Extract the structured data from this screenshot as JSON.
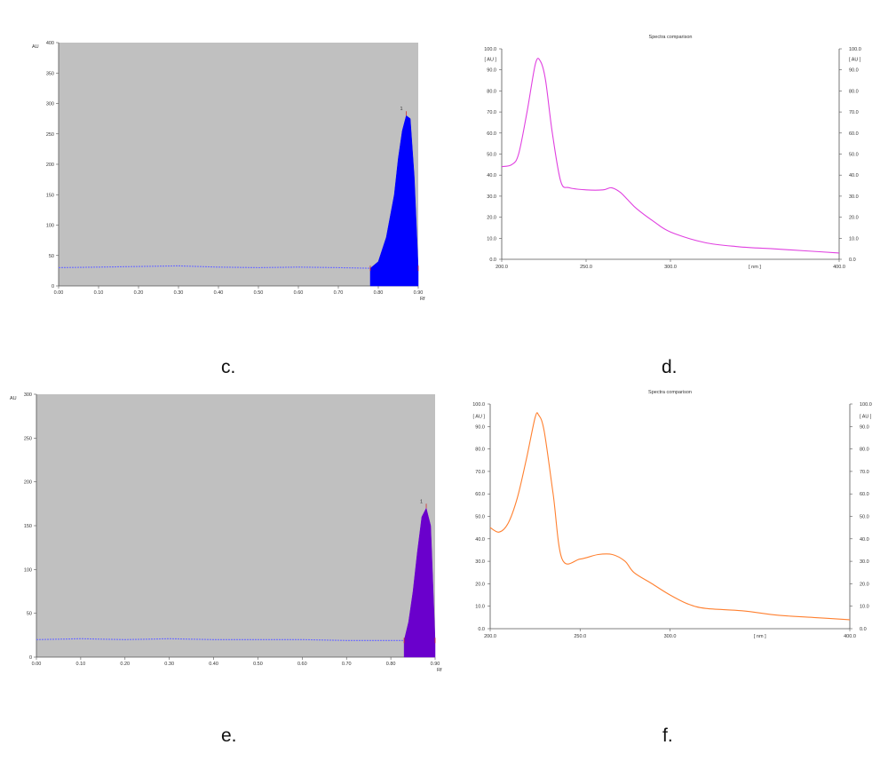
{
  "labels": {
    "c": "c.",
    "d": "d.",
    "e": "e.",
    "f": "f."
  },
  "chart_data": [
    {
      "id": "c",
      "type": "area",
      "ylabel": "AU",
      "xlabel": "Rf",
      "ylim": [
        0,
        400
      ],
      "xlim": [
        0.0,
        0.9
      ],
      "y_ticks": [
        "0",
        "50",
        "100",
        "150",
        "200",
        "250",
        "300",
        "350",
        "400"
      ],
      "x_ticks": [
        "0.00",
        "0.10",
        "0.20",
        "0.30",
        "0.40",
        "0.50",
        "0.60",
        "0.70",
        "0.80",
        "0.90"
      ],
      "grid": false,
      "background": "#c0c0c0",
      "baseline_color": "#6a6aff",
      "peak_color": "#0000ff",
      "peak_label": "1",
      "baseline": {
        "x": [
          0.0,
          0.1,
          0.2,
          0.3,
          0.4,
          0.5,
          0.6,
          0.7,
          0.78
        ],
        "y": [
          30,
          31,
          32,
          33,
          31,
          30,
          31,
          30,
          29
        ]
      },
      "peak": {
        "x": [
          0.78,
          0.8,
          0.82,
          0.84,
          0.85,
          0.86,
          0.87,
          0.88,
          0.89,
          0.9
        ],
        "y": [
          29,
          40,
          80,
          150,
          210,
          255,
          280,
          275,
          180,
          29
        ]
      }
    },
    {
      "id": "d",
      "type": "line",
      "title": "Spectra comparison",
      "ylabel": "[ AU ]",
      "xlabel": "[ nm ]",
      "xlim": [
        200,
        400
      ],
      "ylim": [
        0,
        100
      ],
      "y_ticks": [
        "0.0",
        "10.0",
        "20.0",
        "30.0",
        "40.0",
        "50.0",
        "60.0",
        "70.0",
        "80.0",
        "90.0",
        "100.0"
      ],
      "x_ticks": [
        "200.0",
        "250.0",
        "300.0",
        "400.0"
      ],
      "line_color": "#e040e0",
      "grid": false,
      "x": [
        200,
        206,
        210,
        215,
        220,
        223,
        226,
        230,
        235,
        240,
        250,
        260,
        265,
        270,
        275,
        280,
        290,
        300,
        320,
        340,
        360,
        380,
        400
      ],
      "y": [
        44,
        45,
        50,
        70,
        93,
        94,
        85,
        60,
        37,
        34,
        33,
        33,
        34,
        32,
        28,
        24,
        18,
        13,
        8,
        6,
        5,
        4,
        3
      ]
    },
    {
      "id": "e",
      "type": "area",
      "ylabel": "AU",
      "xlabel": "Rf",
      "ylim": [
        0,
        300
      ],
      "xlim": [
        0.0,
        0.9
      ],
      "y_ticks": [
        "0",
        "50",
        "100",
        "150",
        "200",
        "250",
        "300"
      ],
      "x_ticks": [
        "0.00",
        "0.10",
        "0.20",
        "0.30",
        "0.40",
        "0.50",
        "0.60",
        "0.70",
        "0.80",
        "0.90"
      ],
      "grid": false,
      "background": "#c0c0c0",
      "baseline_color": "#6a6aff",
      "peak_color": "#6a00cc",
      "peak_label": "1",
      "baseline": {
        "x": [
          0.0,
          0.1,
          0.2,
          0.3,
          0.4,
          0.5,
          0.6,
          0.7,
          0.8,
          0.83
        ],
        "y": [
          20,
          21,
          20,
          21,
          20,
          20,
          20,
          19,
          19,
          19
        ]
      },
      "peak": {
        "x": [
          0.83,
          0.84,
          0.85,
          0.86,
          0.87,
          0.88,
          0.89,
          0.9
        ],
        "y": [
          19,
          40,
          75,
          120,
          160,
          170,
          150,
          19
        ]
      }
    },
    {
      "id": "f",
      "type": "line",
      "title": "Spectra comparison",
      "ylabel": "[ AU ]",
      "xlabel": "[ nm ]",
      "xlim": [
        200,
        400
      ],
      "ylim": [
        0,
        100
      ],
      "y_ticks": [
        "0.0",
        "10.0",
        "20.0",
        "30.0",
        "40.0",
        "50.0",
        "60.0",
        "70.0",
        "80.0",
        "90.0",
        "100.0"
      ],
      "x_ticks": [
        "200.0",
        "250.0",
        "300.0",
        "400.0"
      ],
      "line_color": "#ff8030",
      "grid": false,
      "x": [
        200,
        205,
        210,
        215,
        220,
        225,
        227,
        230,
        235,
        240,
        250,
        260,
        268,
        275,
        280,
        290,
        300,
        310,
        320,
        340,
        360,
        380,
        400
      ],
      "y": [
        45,
        43,
        47,
        58,
        75,
        94,
        95,
        88,
        60,
        31,
        31,
        33,
        33,
        30,
        25,
        20,
        15,
        11,
        9,
        8,
        6,
        5,
        4
      ]
    }
  ]
}
